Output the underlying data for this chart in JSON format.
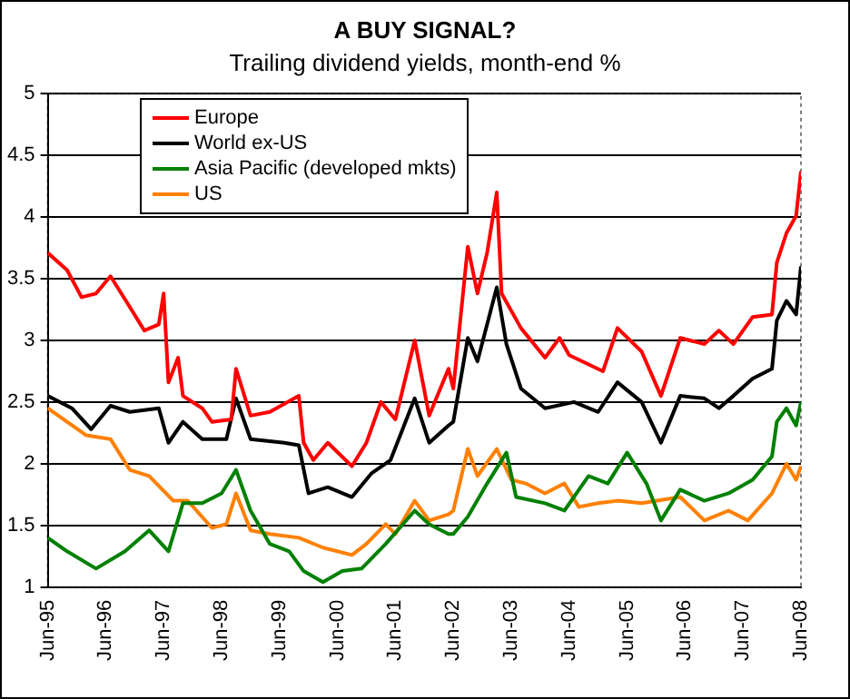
{
  "chart_data": {
    "type": "line",
    "title": "A BUY SIGNAL?",
    "subtitle": "Trailing dividend yields, month-end %",
    "xlim": [
      "1995-06",
      "2008-06"
    ],
    "xticks": [
      {
        "value": "1995-06",
        "label": "Jun-95"
      },
      {
        "value": "1996-06",
        "label": "Jun-96"
      },
      {
        "value": "1997-06",
        "label": "Jun-97"
      },
      {
        "value": "1998-06",
        "label": "Jun-98"
      },
      {
        "value": "1999-06",
        "label": "Jun-99"
      },
      {
        "value": "2000-06",
        "label": "Jun-00"
      },
      {
        "value": "2001-06",
        "label": "Jun-01"
      },
      {
        "value": "2002-06",
        "label": "Jun-02"
      },
      {
        "value": "2003-06",
        "label": "Jun-03"
      },
      {
        "value": "2004-06",
        "label": "Jun-04"
      },
      {
        "value": "2005-06",
        "label": "Jun-05"
      },
      {
        "value": "2006-06",
        "label": "Jun-06"
      },
      {
        "value": "2007-06",
        "label": "Jun-07"
      },
      {
        "value": "2008-06",
        "label": "Jun-08"
      }
    ],
    "ylim": [
      1,
      5
    ],
    "yticks": [
      1,
      1.5,
      2,
      2.5,
      3,
      3.5,
      4,
      4.5,
      5
    ],
    "grid": "y",
    "legend": "top left",
    "marker": "none",
    "line_style": "solid",
    "series": [
      {
        "name": "Europe",
        "color": "#ff0000",
        "x": [
          "1995-06",
          "1995-10",
          "1996-01",
          "1996-04",
          "1996-07",
          "1996-11",
          "1997-02",
          "1997-05",
          "1997-06",
          "1997-07",
          "1997-09",
          "1997-10",
          "1998-02",
          "1998-04",
          "1998-08",
          "1998-09",
          "1998-12",
          "1999-04",
          "1999-10",
          "1999-11",
          "2000-01",
          "2000-04",
          "2000-09",
          "2000-12",
          "2001-03",
          "2001-06",
          "2001-10",
          "2002-01",
          "2002-05",
          "2002-06",
          "2002-09",
          "2002-11",
          "2003-01",
          "2003-03",
          "2003-04",
          "2003-08",
          "2004-01",
          "2004-04",
          "2004-06",
          "2005-01",
          "2005-04",
          "2005-09",
          "2006-01",
          "2006-05",
          "2006-10",
          "2007-01",
          "2007-04",
          "2007-08",
          "2007-12",
          "2008-01",
          "2008-03",
          "2008-05",
          "2008-06"
        ],
        "values": [
          3.71,
          3.57,
          3.35,
          3.38,
          3.52,
          3.27,
          3.08,
          3.13,
          3.38,
          2.66,
          2.86,
          2.55,
          2.45,
          2.34,
          2.36,
          2.77,
          2.39,
          2.42,
          2.55,
          2.17,
          2.03,
          2.17,
          1.98,
          2.17,
          2.5,
          2.36,
          3.0,
          2.39,
          2.77,
          2.61,
          3.76,
          3.38,
          3.71,
          4.2,
          3.38,
          3.1,
          2.86,
          3.02,
          2.88,
          2.75,
          3.1,
          2.91,
          2.55,
          3.02,
          2.97,
          3.08,
          2.97,
          3.19,
          3.21,
          3.63,
          3.87,
          4.01,
          4.37
        ]
      },
      {
        "name": "World ex-US",
        "color": "#000000",
        "x": [
          "1995-06",
          "1995-11",
          "1996-03",
          "1996-07",
          "1996-11",
          "1997-05",
          "1997-07",
          "1997-10",
          "1998-02",
          "1998-07",
          "1998-09",
          "1998-12",
          "1999-07",
          "1999-10",
          "1999-12",
          "2000-04",
          "2000-09",
          "2001-01",
          "2001-05",
          "2001-10",
          "2002-01",
          "2002-05",
          "2002-06",
          "2002-09",
          "2002-11",
          "2003-03",
          "2003-05",
          "2003-08",
          "2004-01",
          "2004-07",
          "2004-12",
          "2005-04",
          "2005-09",
          "2006-01",
          "2006-05",
          "2006-10",
          "2007-01",
          "2007-04",
          "2007-08",
          "2007-12",
          "2008-01",
          "2008-03",
          "2008-05",
          "2008-06"
        ],
        "values": [
          2.55,
          2.45,
          2.28,
          2.47,
          2.42,
          2.45,
          2.17,
          2.34,
          2.2,
          2.2,
          2.53,
          2.2,
          2.17,
          2.15,
          1.76,
          1.81,
          1.73,
          1.92,
          2.03,
          2.53,
          2.17,
          2.31,
          2.34,
          3.02,
          2.83,
          3.43,
          2.97,
          2.61,
          2.45,
          2.5,
          2.42,
          2.66,
          2.5,
          2.17,
          2.55,
          2.53,
          2.45,
          2.55,
          2.69,
          2.77,
          3.16,
          3.32,
          3.21,
          3.6
        ]
      },
      {
        "name": "Asia Pacific (developed mkts)",
        "color": "#008000",
        "x": [
          "1995-06",
          "1995-10",
          "1996-04",
          "1996-10",
          "1997-03",
          "1997-07",
          "1997-10",
          "1998-02",
          "1998-06",
          "1998-09",
          "1998-12",
          "1999-04",
          "1999-08",
          "1999-11",
          "2000-03",
          "2000-07",
          "2000-11",
          "2001-04",
          "2001-10",
          "2002-01",
          "2002-05",
          "2002-06",
          "2002-09",
          "2003-01",
          "2003-05",
          "2003-07",
          "2004-01",
          "2004-05",
          "2004-10",
          "2005-02",
          "2005-06",
          "2005-10",
          "2006-01",
          "2006-05",
          "2006-10",
          "2007-03",
          "2007-08",
          "2007-12",
          "2008-01",
          "2008-03",
          "2008-05",
          "2008-06"
        ],
        "values": [
          1.4,
          1.29,
          1.15,
          1.29,
          1.46,
          1.29,
          1.68,
          1.68,
          1.76,
          1.95,
          1.62,
          1.35,
          1.29,
          1.13,
          1.04,
          1.13,
          1.15,
          1.35,
          1.62,
          1.51,
          1.43,
          1.43,
          1.57,
          1.84,
          2.09,
          1.73,
          1.68,
          1.62,
          1.9,
          1.84,
          2.09,
          1.84,
          1.54,
          1.79,
          1.7,
          1.76,
          1.87,
          2.06,
          2.34,
          2.45,
          2.31,
          2.5
        ]
      },
      {
        "name": "US",
        "color": "#ff8000",
        "x": [
          "1995-06",
          "1995-10",
          "1996-02",
          "1996-07",
          "1996-11",
          "1997-03",
          "1997-08",
          "1997-11",
          "1998-04",
          "1998-07",
          "1998-09",
          "1998-12",
          "1999-04",
          "1999-10",
          "2000-03",
          "2000-09",
          "2000-12",
          "2001-04",
          "2001-06",
          "2001-10",
          "2002-01",
          "2002-05",
          "2002-06",
          "2002-09",
          "2002-11",
          "2003-03",
          "2003-06",
          "2003-09",
          "2004-01",
          "2004-05",
          "2004-08",
          "2004-12",
          "2005-04",
          "2005-09",
          "2006-05",
          "2006-10",
          "2007-03",
          "2007-07",
          "2007-12",
          "2008-03",
          "2008-05",
          "2008-06"
        ],
        "values": [
          2.45,
          2.34,
          2.23,
          2.2,
          1.95,
          1.9,
          1.7,
          1.7,
          1.48,
          1.51,
          1.76,
          1.46,
          1.43,
          1.4,
          1.32,
          1.26,
          1.35,
          1.51,
          1.43,
          1.7,
          1.54,
          1.59,
          1.62,
          2.12,
          1.9,
          2.12,
          1.87,
          1.84,
          1.76,
          1.84,
          1.65,
          1.68,
          1.7,
          1.68,
          1.73,
          1.54,
          1.62,
          1.54,
          1.76,
          2.0,
          1.87,
          1.98
        ]
      }
    ]
  }
}
